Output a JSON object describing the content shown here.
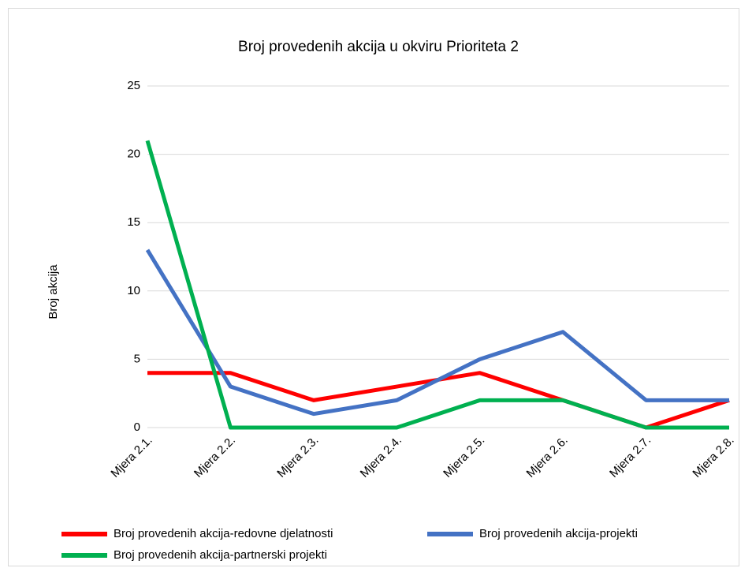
{
  "chart_data": {
    "type": "line",
    "title": "Broj provedenih akcija u okviru Prioriteta 2",
    "y_label": "Broj akcija",
    "categories": [
      "Mjera 2.1.",
      "Mjera 2.2.",
      "Mjera 2.3.",
      "Mjera 2.4.",
      "Mjera 2.5.",
      "Mjera 2.6.",
      "Mjera 2.7.",
      "Mjera 2.8."
    ],
    "series": [
      {
        "name": "Broj provedenih akcija-redovne djelatnosti",
        "color": "#ff0000",
        "values": [
          4,
          4,
          2,
          3,
          4,
          2,
          0,
          2
        ]
      },
      {
        "name": "Broj provedenih akcija-projekti",
        "color": "#4472c4",
        "values": [
          13,
          3,
          1,
          2,
          5,
          7,
          2,
          2
        ]
      },
      {
        "name": "Broj provedenih akcija-partnerski projekti",
        "color": "#00b050",
        "values": [
          21,
          0,
          0,
          0,
          2,
          2,
          0,
          0
        ]
      }
    ],
    "ylim": [
      0,
      25
    ],
    "yticks": [
      0,
      5,
      10,
      15,
      20,
      25
    ],
    "grid": true,
    "legend": "bottom"
  }
}
